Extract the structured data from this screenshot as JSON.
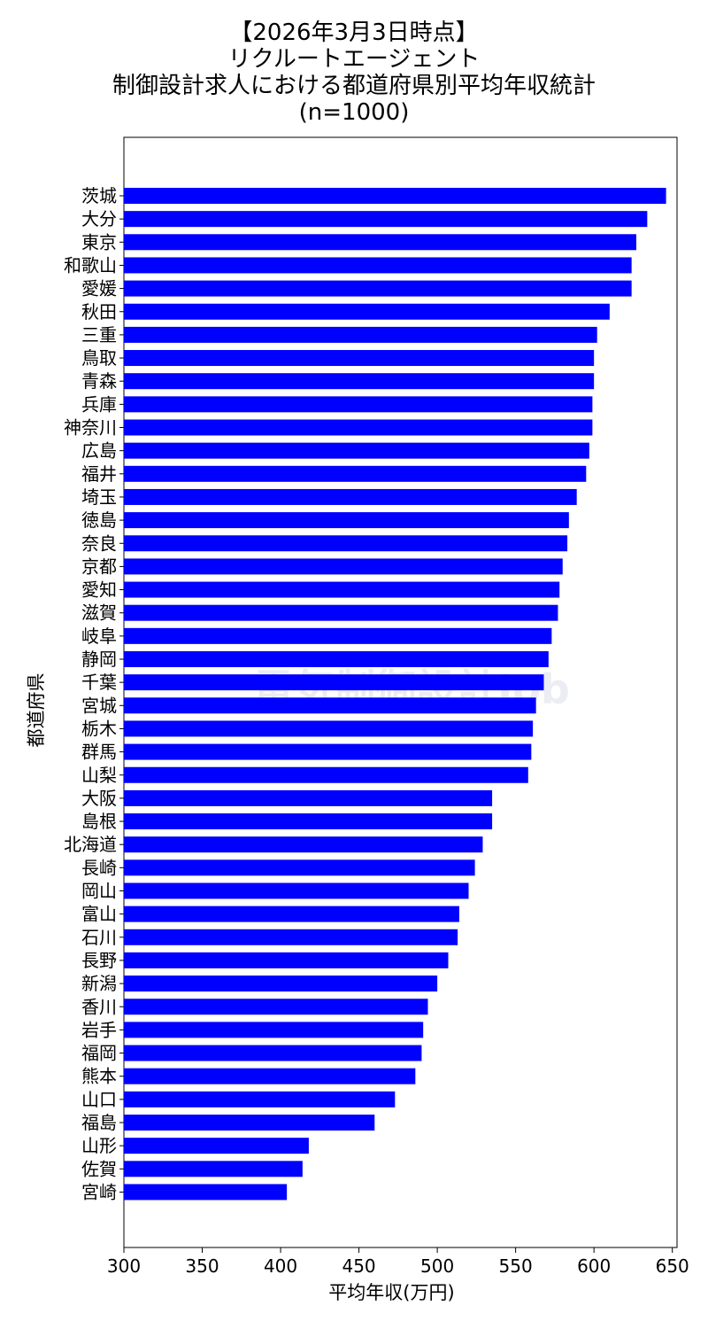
{
  "chart_data": {
    "type": "bar",
    "orientation": "horizontal",
    "title_lines": [
      "【2026年3月3日時点】",
      "リクルートエージェント",
      "制御設計求人における都道府県別平均年収統計",
      "(n=1000)"
    ],
    "xlabel": "平均年収(万円)",
    "ylabel": "都道府県",
    "xlim": [
      300,
      653
    ],
    "xticks": [
      300,
      350,
      400,
      450,
      500,
      550,
      600,
      650
    ],
    "bar_color": "#0000ff",
    "grid": false,
    "watermark": "電気制御設計Job",
    "categories": [
      "茨城",
      "大分",
      "東京",
      "和歌山",
      "愛媛",
      "秋田",
      "三重",
      "鳥取",
      "青森",
      "兵庫",
      "神奈川",
      "広島",
      "福井",
      "埼玉",
      "徳島",
      "奈良",
      "京都",
      "愛知",
      "滋賀",
      "岐阜",
      "静岡",
      "千葉",
      "宮城",
      "栃木",
      "群馬",
      "山梨",
      "大阪",
      "島根",
      "北海道",
      "長崎",
      "岡山",
      "富山",
      "石川",
      "長野",
      "新潟",
      "香川",
      "岩手",
      "福岡",
      "熊本",
      "山口",
      "福島",
      "山形",
      "佐賀",
      "宮崎"
    ],
    "values": [
      646,
      634,
      627,
      624,
      624,
      610,
      602,
      600,
      600,
      599,
      599,
      597,
      595,
      589,
      584,
      583,
      580,
      578,
      577,
      573,
      571,
      568,
      563,
      561,
      560,
      558,
      535,
      535,
      529,
      524,
      520,
      514,
      513,
      507,
      500,
      494,
      491,
      490,
      486,
      473,
      460,
      418,
      414,
      404
    ]
  }
}
